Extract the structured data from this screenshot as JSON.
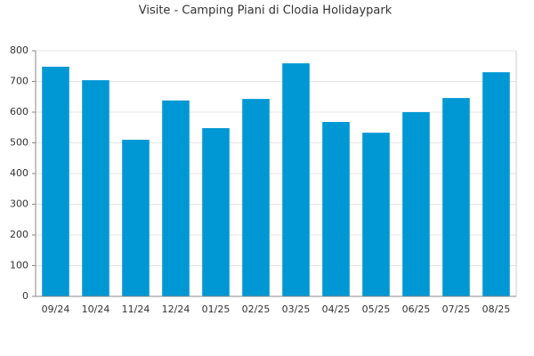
{
  "chart_data": {
    "type": "bar",
    "title": "Visite - Camping Piani di Clodia Holidaypark",
    "categories": [
      "09/24",
      "10/24",
      "11/24",
      "12/24",
      "01/25",
      "02/25",
      "03/25",
      "04/25",
      "05/25",
      "06/25",
      "07/25",
      "08/25"
    ],
    "values": [
      748,
      704,
      510,
      638,
      548,
      643,
      759,
      568,
      533,
      600,
      646,
      730
    ],
    "color": "#0098d4",
    "ylim": [
      0,
      800
    ],
    "yticks": [
      0,
      100,
      200,
      300,
      400,
      500,
      600,
      700,
      800
    ],
    "grid": true
  }
}
